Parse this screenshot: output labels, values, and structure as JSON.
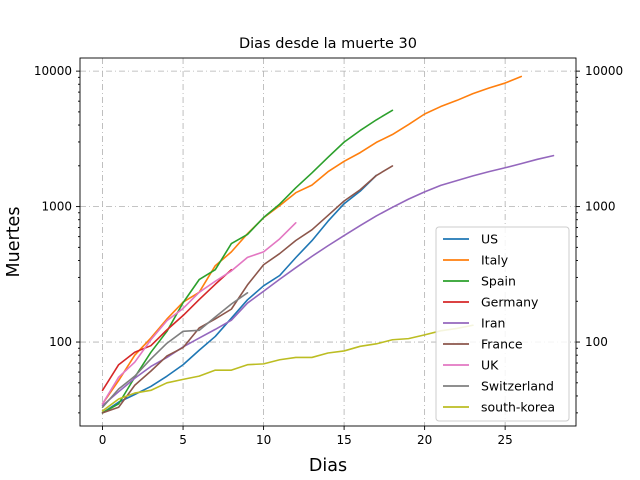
{
  "chart_data": {
    "type": "line",
    "title": "Dias desde la muerte 30",
    "xlabel": "Dias",
    "ylabel": "Muertes",
    "yscale": "log",
    "xlim": [
      -1.4,
      29.4
    ],
    "ylim": [
      24,
      12500
    ],
    "xticks": [
      0,
      5,
      10,
      15,
      20,
      25
    ],
    "xtick_labels": [
      "0",
      "5",
      "10",
      "15",
      "20",
      "25"
    ],
    "yticks": [
      100,
      1000,
      10000
    ],
    "ytick_labels": [
      "100",
      "1000",
      "10000"
    ],
    "right_ytick_labels": [
      "100",
      "1000",
      "10000"
    ],
    "grid": true,
    "legend_position": "lower-right",
    "series": [
      {
        "name": "US",
        "color": "#1f77b4",
        "x": [
          0,
          1,
          2,
          3,
          4,
          5,
          6,
          7,
          8,
          9,
          10,
          11,
          12,
          13,
          14,
          15,
          16,
          17
        ],
        "values": [
          30,
          36,
          41,
          47,
          56,
          68,
          87,
          110,
          150,
          205,
          260,
          310,
          420,
          560,
          780,
          1050,
          1300,
          1700
        ]
      },
      {
        "name": "Italy",
        "color": "#ff7f0e",
        "x": [
          0,
          1,
          2,
          3,
          4,
          5,
          6,
          7,
          8,
          9,
          10,
          11,
          12,
          13,
          14,
          15,
          16,
          17,
          18,
          19,
          20,
          21,
          22,
          23,
          24,
          25,
          26
        ],
        "values": [
          35,
          52,
          80,
          107,
          148,
          197,
          233,
          366,
          463,
          631,
          827,
          1016,
          1266,
          1441,
          1809,
          2158,
          2503,
          2978,
          3405,
          4032,
          4825,
          5476,
          6077,
          6820,
          7503,
          8165,
          9134
        ]
      },
      {
        "name": "Spain",
        "color": "#2ca02c",
        "x": [
          0,
          1,
          2,
          3,
          4,
          5,
          6,
          7,
          8,
          9,
          10,
          11,
          12,
          13,
          14,
          15,
          16,
          17,
          18
        ],
        "values": [
          30,
          35,
          55,
          84,
          120,
          195,
          289,
          342,
          533,
          623,
          830,
          1043,
          1375,
          1772,
          2311,
          2991,
          3647,
          4365,
          5138
        ]
      },
      {
        "name": "Germany",
        "color": "#d62728",
        "x": [
          0,
          1,
          2,
          3,
          4,
          5,
          6,
          7,
          8
        ],
        "values": [
          44,
          68,
          84,
          94,
          123,
          157,
          206,
          267,
          342
        ]
      },
      {
        "name": "Iran",
        "color": "#9467bd",
        "x": [
          0,
          1,
          2,
          3,
          4,
          5,
          6,
          7,
          8,
          9,
          10,
          11,
          12,
          13,
          14,
          15,
          16,
          17,
          18,
          19,
          20,
          21,
          22,
          23,
          24,
          25,
          26,
          27,
          28
        ],
        "values": [
          34,
          43,
          54,
          66,
          77,
          92,
          107,
          124,
          145,
          194,
          237,
          291,
          354,
          429,
          514,
          611,
          724,
          853,
          988,
          1135,
          1284,
          1433,
          1556,
          1685,
          1812,
          1934,
          2077,
          2234,
          2378
        ]
      },
      {
        "name": "France",
        "color": "#8c564b",
        "x": [
          0,
          1,
          2,
          3,
          4,
          5,
          6,
          7,
          8,
          9,
          10,
          11,
          12,
          13,
          14,
          15,
          16,
          17,
          18
        ],
        "values": [
          30,
          33,
          48,
          61,
          79,
          91,
          127,
          148,
          175,
          264,
          372,
          450,
          562,
          674,
          860,
          1100,
          1331,
          1696,
          1995
        ]
      },
      {
        "name": "UK",
        "color": "#e377c2",
        "x": [
          0,
          1,
          2,
          3,
          4,
          5,
          6,
          7,
          8,
          9,
          10,
          11,
          12
        ],
        "values": [
          35,
          55,
          71,
          104,
          144,
          177,
          233,
          281,
          335,
          422,
          463,
          578,
          759
        ]
      },
      {
        "name": "Switzerland",
        "color": "#7f7f7f",
        "x": [
          0,
          1,
          2,
          3,
          4,
          5,
          6,
          7,
          8,
          9
        ],
        "values": [
          33,
          45,
          56,
          75,
          98,
          120,
          122,
          153,
          191,
          231
        ]
      },
      {
        "name": "south-korea",
        "color": "#bcbd22",
        "x": [
          0,
          1,
          2,
          3,
          4,
          5,
          6,
          7,
          8,
          9,
          10,
          11,
          12,
          13,
          14,
          15,
          16,
          17,
          18,
          19,
          20,
          21,
          22,
          23
        ],
        "values": [
          31,
          38,
          42,
          44,
          50,
          53,
          56,
          62,
          62,
          68,
          69,
          74,
          77,
          77,
          83,
          86,
          93,
          97,
          104,
          106,
          113,
          121,
          126,
          133
        ]
      }
    ]
  }
}
